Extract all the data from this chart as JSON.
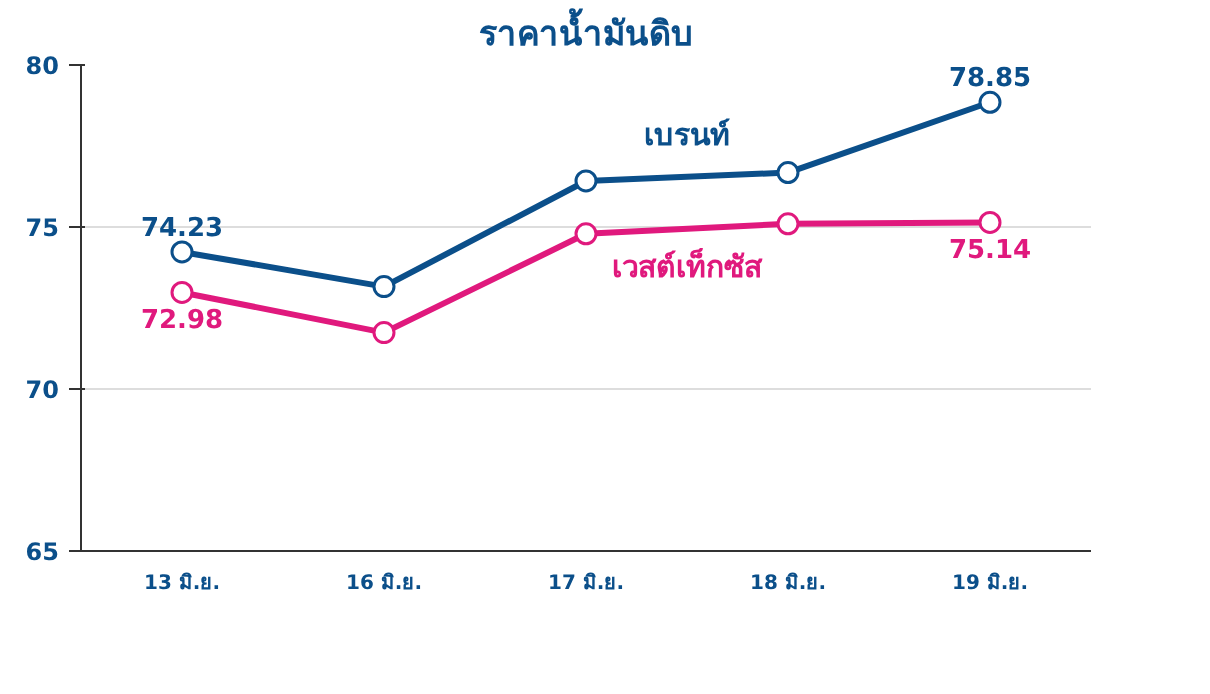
{
  "chart_data": {
    "type": "line",
    "title": "ราคาน้ำมันดิบ",
    "categories": [
      "13 มิ.ย.",
      "16 มิ.ย.",
      "17 มิ.ย.",
      "18 มิ.ย.",
      "19 มิ.ย."
    ],
    "series": [
      {
        "name": "เบรนท์",
        "color": "#0b4f8a",
        "values": [
          74.23,
          73.16,
          76.42,
          76.68,
          78.85
        ],
        "value_labels": [
          "74.23",
          null,
          null,
          null,
          "78.85"
        ]
      },
      {
        "name": "เวสต์เท็กซัส",
        "color": "#e0197d",
        "values": [
          72.98,
          71.74,
          74.79,
          75.1,
          75.14
        ],
        "value_labels": [
          "72.98",
          null,
          null,
          null,
          "75.14"
        ]
      }
    ],
    "ylim": [
      65,
      80
    ],
    "yticks": [
      65,
      70,
      75,
      80
    ],
    "grid": "y",
    "marker": "circle",
    "line_style": "solid",
    "legend": false
  }
}
